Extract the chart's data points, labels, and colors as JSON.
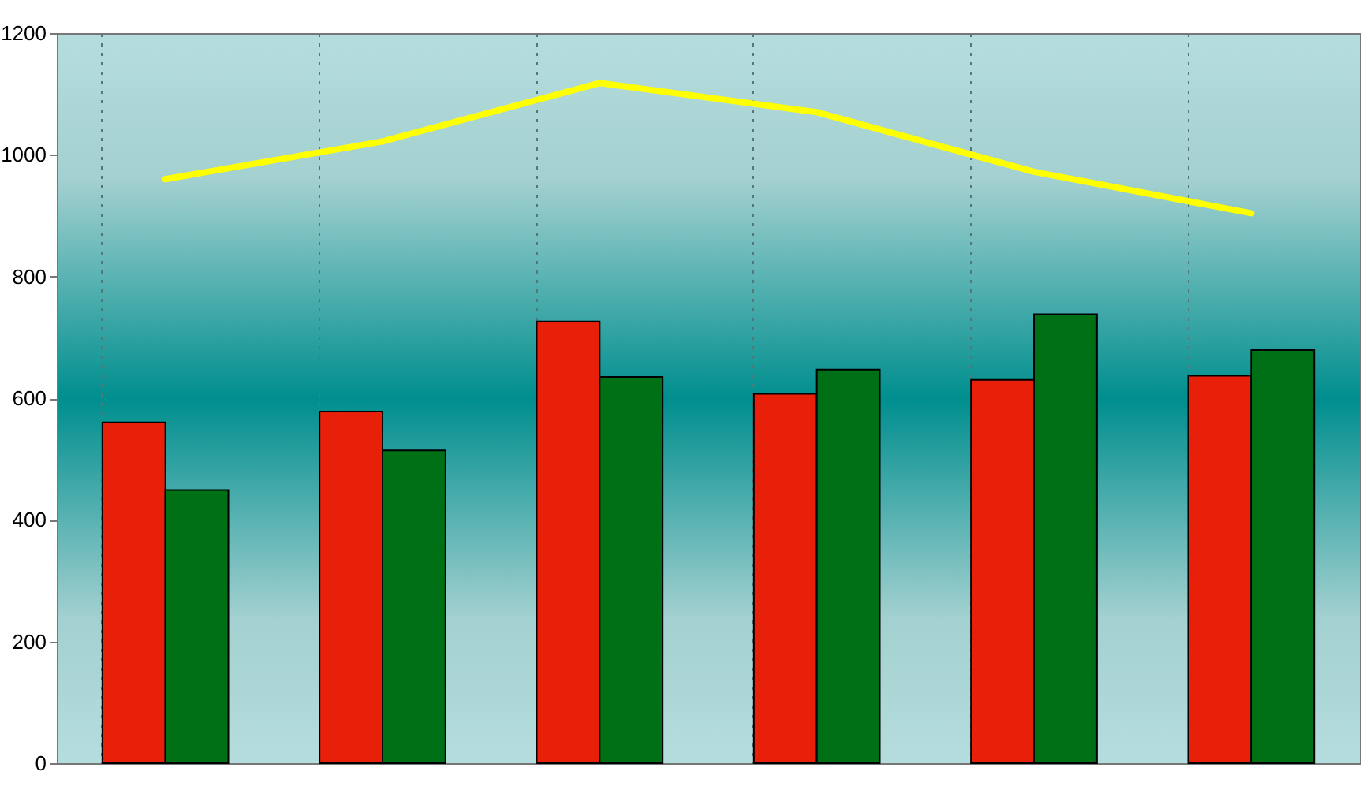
{
  "chart_data": {
    "type": "bar",
    "categories": [
      null,
      null,
      null,
      null,
      null,
      null
    ],
    "series": [
      {
        "color": "#e8200a",
        "values": [
          560,
          578,
          726,
          607,
          630,
          637
        ]
      },
      {
        "color": "#007017",
        "values": [
          449,
          514,
          635,
          647,
          738,
          679
        ]
      },
      {
        "type": "line",
        "color": "#ffff00",
        "values": [
          960,
          1022,
          1118,
          1070,
          972,
          904
        ]
      }
    ],
    "ylim": [
      0,
      1200
    ],
    "yticks": [
      0,
      200,
      400,
      600,
      800,
      1000,
      1200
    ],
    "grid": "x",
    "tick_labels": "y",
    "marker": "none",
    "line_style": "solid"
  }
}
